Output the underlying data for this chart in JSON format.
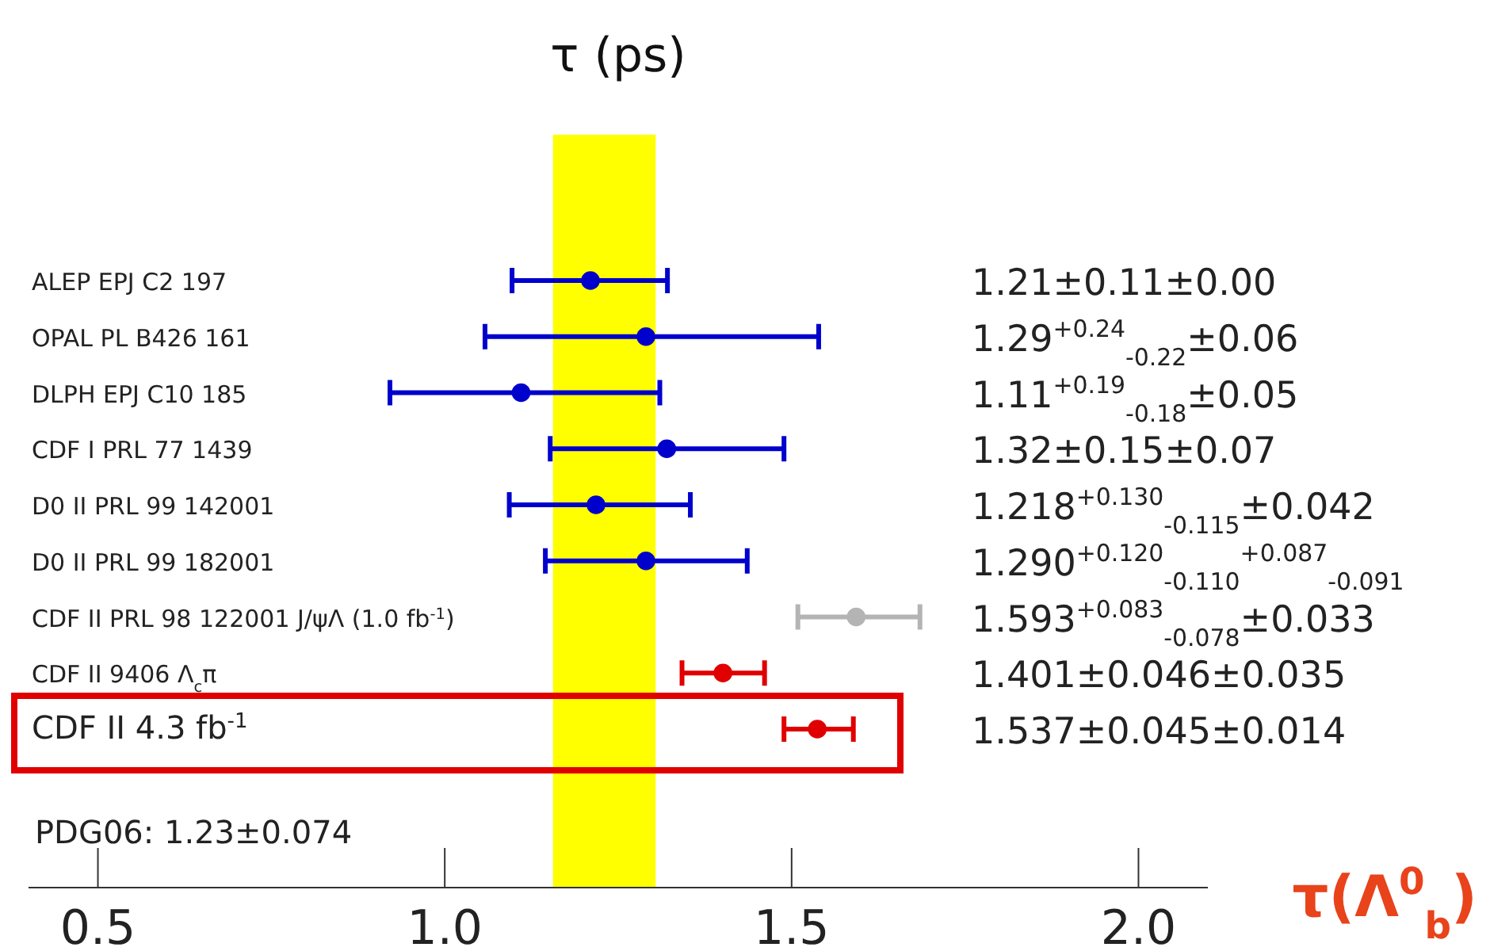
{
  "chart_data": {
    "type": "scatter",
    "orientation": "horizontal",
    "title": "τ (ps)",
    "xlabel": "τ(Λ$^{0}$$_{b}$)",
    "categories": [
      "ALEP EPJ C2 197",
      "OPAL PL B426 161",
      "DLPH EPJ C10 185",
      "CDF I PRL 77 1439",
      "D0 II PRL 99 142001",
      "D0 II PRL 99 182001",
      "CDF II PRL 98 122001 J/ψΛ  (1.0 fb$^{-1}$)",
      "CDF II 9406 Λ$_{c}$π",
      "CDF II 4.3 fb$^{-1}$"
    ],
    "values": [
      1.21,
      1.29,
      1.11,
      1.32,
      1.218,
      1.29,
      1.593,
      1.401,
      1.537
    ],
    "colors": [
      "#0000cc",
      "#0000cc",
      "#0000cc",
      "#0000cc",
      "#0000cc",
      "#0000cc",
      "#b4b4b4",
      "#e00000",
      "#e00000"
    ],
    "errors": [
      [
        1.097,
        1.321
      ],
      [
        1.058,
        1.539
      ],
      [
        0.921,
        1.31
      ],
      [
        1.152,
        1.489
      ],
      [
        1.093,
        1.354
      ],
      [
        1.145,
        1.436
      ],
      [
        1.509,
        1.685
      ],
      [
        1.342,
        1.461
      ],
      [
        1.489,
        1.589
      ]
    ],
    "annotations": [
      "PDG06: 1.23±0.074",
      "1.21±0.11±0.00",
      "1.29$^{+0.24}$$_{-0.22}$±0.06",
      "1.11$^{+0.19}$$_{-0.18}$±0.05",
      "1.32±0.15±0.07",
      "1.218$^{+0.130}$$_{-0.115}$±0.042",
      "1.290$^{+0.120}$$_{-0.110}$$^{+0.087}$$_{-0.091}$",
      "1.593$^{+0.083}$$_{-0.078}$±0.033",
      "1.401±0.046±0.035",
      "1.537±0.045±0.014"
    ],
    "bands": [
      {
        "axis": "x",
        "from": 1.156,
        "to": 1.304,
        "color": "#ffff00"
      }
    ],
    "xlim": [
      0.4,
      2.1
    ],
    "xticks": [
      0.5,
      {
        "value": 1,
        "label": "1.0"
      },
      1.5,
      {
        "value": 2,
        "label": "2.0"
      }
    ],
    "marker": "circle"
  }
}
